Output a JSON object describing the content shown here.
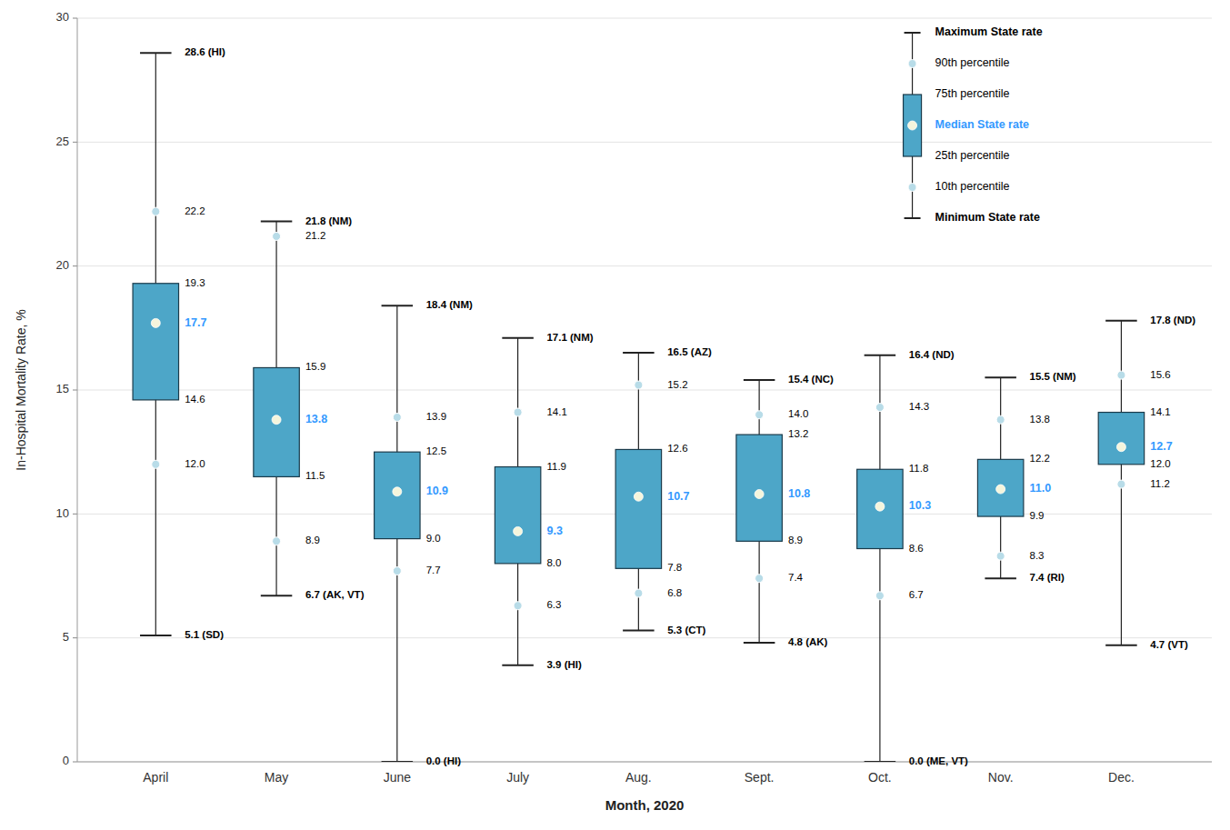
{
  "chart_data": {
    "type": "box",
    "xlabel": "Month, 2020",
    "ylabel": "In-Hospital Mortality Rate, %",
    "categories": [
      "April",
      "May",
      "June",
      "July",
      "Aug.",
      "Sept.",
      "Oct.",
      "Nov.",
      "Dec."
    ],
    "series": [
      {
        "name": "Maximum State rate",
        "color": "#222222",
        "values": [
          28.6,
          21.8,
          18.4,
          17.1,
          16.5,
          15.4,
          16.4,
          15.5,
          17.8
        ],
        "value_labels": [
          "28.6 (HI)",
          "21.8 (NM)",
          "18.4 (NM)",
          "17.1 (NM)",
          "16.5 (AZ)",
          "15.4 (NC)",
          "16.4 (ND)",
          "15.5 (NM)",
          "17.8 (ND)"
        ]
      },
      {
        "name": "90th percentile",
        "color": "#b8dce8",
        "values": [
          22.2,
          21.2,
          13.9,
          14.1,
          15.2,
          14.0,
          14.3,
          13.8,
          15.6
        ],
        "value_labels": [
          "22.2",
          "21.2",
          "13.9",
          "14.1",
          "15.2",
          "14.0",
          "14.3",
          "13.8",
          "15.6"
        ]
      },
      {
        "name": "75th percentile",
        "color": "#4da6c8",
        "values": [
          19.3,
          15.9,
          12.5,
          11.9,
          12.6,
          13.2,
          11.8,
          12.2,
          14.1
        ],
        "value_labels": [
          "19.3",
          "15.9",
          "12.5",
          "11.9",
          "12.6",
          "13.2",
          "11.8",
          "12.2",
          "14.1"
        ]
      },
      {
        "name": "Median State rate",
        "color": "#3399ff",
        "values": [
          17.7,
          13.8,
          10.9,
          9.3,
          10.7,
          10.8,
          10.3,
          11.0,
          12.7
        ],
        "value_labels": [
          "17.7",
          "13.8",
          "10.9",
          "9.3",
          "10.7",
          "10.8",
          "10.3",
          "11.0",
          "12.7"
        ]
      },
      {
        "name": "25th percentile",
        "color": "#4da6c8",
        "values": [
          14.6,
          11.5,
          9.0,
          8.0,
          7.8,
          8.9,
          8.6,
          9.9,
          12.0
        ],
        "value_labels": [
          "14.6",
          "11.5",
          "9.0",
          "8.0",
          "7.8",
          "8.9",
          "8.6",
          "9.9",
          "12.0"
        ]
      },
      {
        "name": "10th percentile",
        "color": "#b8dce8",
        "values": [
          12.0,
          8.9,
          7.7,
          6.3,
          6.8,
          7.4,
          6.7,
          8.3,
          11.2
        ],
        "value_labels": [
          "12.0",
          "8.9",
          "7.7",
          "6.3",
          "6.8",
          "7.4",
          "6.7",
          "8.3",
          "11.2"
        ]
      },
      {
        "name": "Minimum State rate",
        "color": "#222222",
        "values": [
          5.1,
          6.7,
          0.0,
          3.9,
          5.3,
          4.8,
          0.0,
          7.4,
          4.7
        ],
        "value_labels": [
          "5.1 (SD)",
          "6.7 (AK, VT)",
          "0.0 (HI)",
          "3.9 (HI)",
          "5.3 (CT)",
          "4.8 (AK)",
          "0.0 (ME, VT)",
          "7.4 (RI)",
          "4.7 (VT)"
        ]
      }
    ],
    "ylim": [
      0,
      30
    ],
    "yticks": [
      0,
      5,
      10,
      15,
      20,
      25,
      30
    ],
    "grid": true,
    "data_labels": true,
    "legend": "upper right"
  }
}
